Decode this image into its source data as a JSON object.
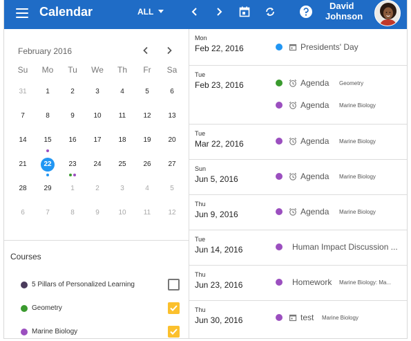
{
  "header": {
    "title": "Calendar",
    "filter_label": "ALL",
    "user_first": "David",
    "user_last": "Johnson"
  },
  "mini_calendar": {
    "month_label": "February 2016",
    "weekdays": [
      "Su",
      "Mo",
      "Tu",
      "We",
      "Th",
      "Fr",
      "Sa"
    ],
    "weeks": [
      [
        "31",
        "1",
        "2",
        "3",
        "4",
        "5",
        "6"
      ],
      [
        "7",
        "8",
        "9",
        "10",
        "11",
        "12",
        "13"
      ],
      [
        "14",
        "15",
        "16",
        "17",
        "18",
        "19",
        "20"
      ],
      [
        "21",
        "22",
        "23",
        "24",
        "25",
        "26",
        "27"
      ],
      [
        "28",
        "29",
        "1",
        "2",
        "3",
        "4",
        "5"
      ],
      [
        "6",
        "7",
        "8",
        "9",
        "10",
        "11",
        "12"
      ]
    ],
    "today": "22"
  },
  "courses": {
    "title": "Courses",
    "items": [
      {
        "label": "5 Pillars of Personalized Learning",
        "color": "#4a3b5c",
        "checked": false
      },
      {
        "label": "Geometry",
        "color": "#3a9a2e",
        "checked": true
      },
      {
        "label": "Marine Biology",
        "color": "#9b4fbf",
        "checked": true
      }
    ]
  },
  "events": [
    {
      "weekday": "Mon",
      "date": "Feb 22, 2016",
      "items": [
        {
          "icon": "calendar-icon",
          "title": "Presidents' Day",
          "course": "",
          "color": "#2196f3"
        }
      ]
    },
    {
      "weekday": "Tue",
      "date": "Feb 23, 2016",
      "items": [
        {
          "icon": "alarm-icon",
          "title": "Agenda",
          "course": "Geometry",
          "color": "#3a9a2e"
        },
        {
          "icon": "alarm-icon",
          "title": "Agenda",
          "course": "Marine Biology",
          "color": "#9b4fbf"
        }
      ]
    },
    {
      "weekday": "Tue",
      "date": "Mar 22, 2016",
      "items": [
        {
          "icon": "alarm-icon",
          "title": "Agenda",
          "course": "Marine Biology",
          "color": "#9b4fbf"
        }
      ]
    },
    {
      "weekday": "Sun",
      "date": "Jun 5, 2016",
      "items": [
        {
          "icon": "alarm-icon",
          "title": "Agenda",
          "course": "Marine Biology",
          "color": "#9b4fbf"
        }
      ]
    },
    {
      "weekday": "Thu",
      "date": "Jun 9, 2016",
      "items": [
        {
          "icon": "alarm-icon",
          "title": "Agenda",
          "course": "Marine Biology",
          "color": "#9b4fbf"
        }
      ]
    },
    {
      "weekday": "Tue",
      "date": "Jun 14, 2016",
      "items": [
        {
          "icon": "",
          "title": "Human Impact Discussion ...",
          "course": "",
          "color": "#9b4fbf"
        }
      ]
    },
    {
      "weekday": "Thu",
      "date": "Jun 23, 2016",
      "items": [
        {
          "icon": "",
          "title": "Homework",
          "course": "Marine Biology: Ma...",
          "color": "#9b4fbf"
        }
      ]
    },
    {
      "weekday": "Thu",
      "date": "Jun 30, 2016",
      "items": [
        {
          "icon": "calendar-icon",
          "title": "test",
          "course": "Marine Biology",
          "color": "#9b4fbf"
        }
      ]
    }
  ],
  "colors": {
    "accent": "#1f6cc6",
    "today": "#2196f3",
    "checkbox": "#fbc02d"
  }
}
